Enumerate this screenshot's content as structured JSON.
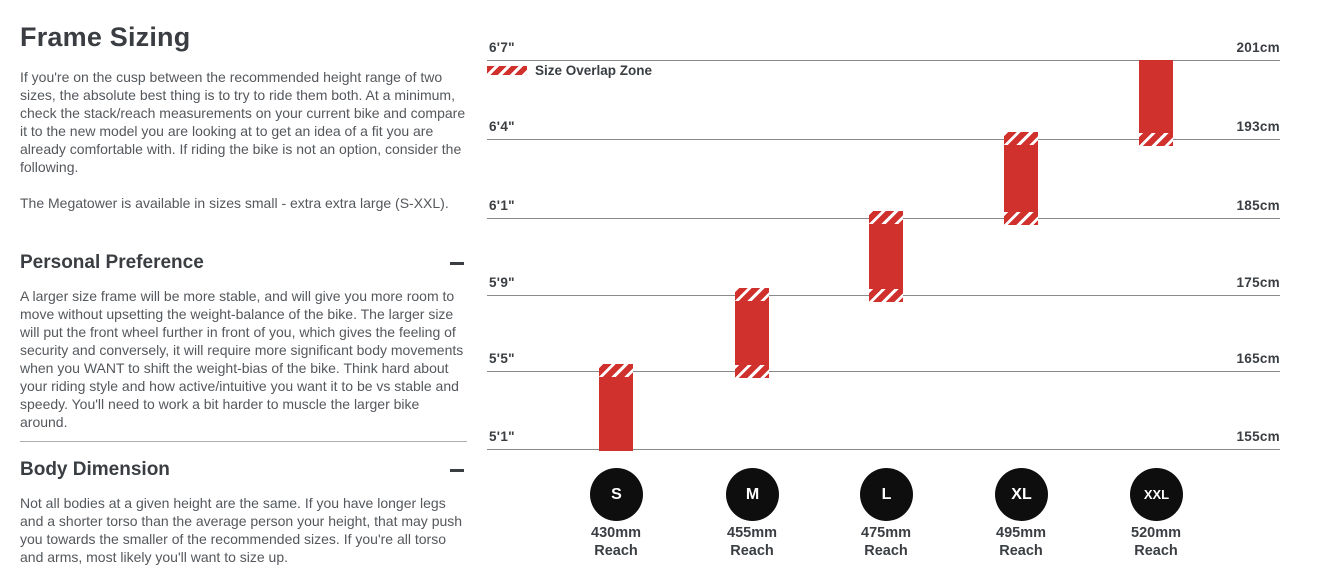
{
  "header": {
    "title": "Frame Sizing"
  },
  "intro": {
    "p1": "If you're on the cusp between the recommended height range of two sizes, the absolute best thing is to try to ride them both. At a minimum, check the stack/reach measurements on your current bike and compare it to the new model you are looking at to get an idea of a fit you are already comfortable with. If riding the bike is not an option, consider the following.",
    "p2": "The Megatower is available in sizes small - extra extra large (S-XXL)."
  },
  "sections": [
    {
      "title": "Personal Preference",
      "body": "A larger size frame will be more stable, and will give you more room to move without upsetting the weight-balance of the bike. The larger size will put the front wheel further in front of you, which gives the feeling of security and conversely, it will require more significant body movements when you WANT to shift the weight-bias of the bike. Think hard about your riding style and how active/intuitive you want it to be vs stable and speedy. You'll need to work a bit harder to muscle the larger bike around."
    },
    {
      "title": "Body Dimension",
      "body": "Not all bodies at a given height are the same. If you have longer legs and a shorter torso than the average person your height, that may push you towards the smaller of the recommended sizes. If you're all torso and arms, most likely you'll want to size up."
    }
  ],
  "chart": {
    "legend_label": "Size Overlap Zone",
    "rows": [
      {
        "ft": "6'7\"",
        "cm": "201cm"
      },
      {
        "ft": "6'4\"",
        "cm": "193cm"
      },
      {
        "ft": "6'1\"",
        "cm": "185cm"
      },
      {
        "ft": "5'9\"",
        "cm": "175cm"
      },
      {
        "ft": "5'5\"",
        "cm": "165cm"
      },
      {
        "ft": "5'1\"",
        "cm": "155cm"
      }
    ],
    "sizes": [
      {
        "label": "S",
        "reach": "430mm",
        "reach_word": "Reach"
      },
      {
        "label": "M",
        "reach": "455mm",
        "reach_word": "Reach"
      },
      {
        "label": "L",
        "reach": "475mm",
        "reach_word": "Reach"
      },
      {
        "label": "XL",
        "reach": "495mm",
        "reach_word": "Reach"
      },
      {
        "label": "XXL",
        "reach": "520mm",
        "reach_word": "Reach"
      }
    ]
  },
  "chart_data": {
    "type": "bar",
    "subtype": "vertical-range-bars (rider height range per frame size)",
    "legend": [
      "Size Overlap Zone"
    ],
    "axis_left_ticks": [
      "6'7\"",
      "6'4\"",
      "6'1\"",
      "5'9\"",
      "5'5\"",
      "5'1\""
    ],
    "axis_right_ticks": [
      "201cm",
      "193cm",
      "185cm",
      "175cm",
      "165cm",
      "155cm"
    ],
    "ylim_cm": [
      155,
      201
    ],
    "grid": "horizontal lines at each tick",
    "bar_color": "#d0312d",
    "overlap_hatch": "white diagonal stripes at range ends shared with adjacent size",
    "series": [
      {
        "size": "S",
        "reach_mm": 430,
        "height_min_cm": 155,
        "height_max_cm": 165,
        "height_min_ft": "5'1\"",
        "height_max_ft": "5'5\"",
        "overlap_top": true,
        "overlap_bottom": false
      },
      {
        "size": "M",
        "reach_mm": 455,
        "height_min_cm": 165,
        "height_max_cm": 175,
        "height_min_ft": "5'5\"",
        "height_max_ft": "5'9\"",
        "overlap_top": true,
        "overlap_bottom": true
      },
      {
        "size": "L",
        "reach_mm": 475,
        "height_min_cm": 175,
        "height_max_cm": 185,
        "height_min_ft": "5'9\"",
        "height_max_ft": "6'1\"",
        "overlap_top": true,
        "overlap_bottom": true
      },
      {
        "size": "XL",
        "reach_mm": 495,
        "height_min_cm": 185,
        "height_max_cm": 193,
        "height_min_ft": "6'1\"",
        "height_max_ft": "6'4\"",
        "overlap_top": true,
        "overlap_bottom": true
      },
      {
        "size": "XXL",
        "reach_mm": 520,
        "height_min_cm": 193,
        "height_max_cm": 201,
        "height_min_ft": "6'4\"",
        "height_max_ft": "6'7\"",
        "overlap_top": false,
        "overlap_bottom": true
      }
    ],
    "colors": {
      "accent_red": "#d0312d",
      "circle_black": "#0e0e0e",
      "text_dark": "#3a3e42",
      "text_body": "#54585c",
      "gridline": "#8a8a8a"
    }
  }
}
